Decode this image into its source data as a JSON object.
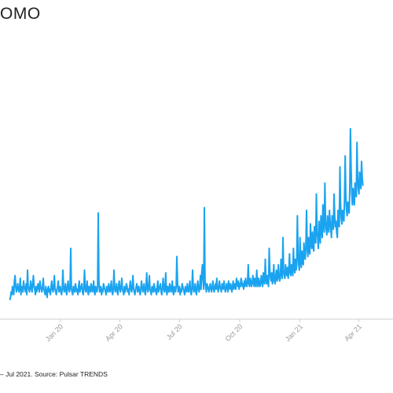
{
  "header": {
    "title": "OMO"
  },
  "footer": {
    "source": "– Jul 2021. Source: Pulsar TRENDS"
  },
  "colors": {
    "line": "#1aa3f0",
    "axis": "#cfcfcf",
    "tick_text": "#9a9a9a"
  },
  "chart_data": {
    "type": "line",
    "title": "OMO",
    "xlabel": "",
    "ylabel": "",
    "x_tick_labels": [
      "Jan 20",
      "Apr 20",
      "Jul 20",
      "Oct 20",
      "Jan 21",
      "Apr 21"
    ],
    "x_tick_days": [
      77,
      168,
      259,
      351,
      443,
      533
    ],
    "xlim_days": [
      -15,
      585
    ],
    "ylim": [
      0,
      100
    ],
    "grid": false,
    "legend": "none",
    "series": [
      {
        "values": [
          7,
          8,
          10,
          9,
          12,
          10,
          9,
          14,
          16,
          12,
          10,
          11,
          13,
          11,
          10,
          12,
          15,
          9,
          12,
          11,
          10,
          14,
          12,
          11,
          10,
          13,
          9,
          18,
          12,
          11,
          10,
          12,
          14,
          11,
          10,
          13,
          16,
          12,
          11,
          9,
          12,
          10,
          11,
          13,
          12,
          10,
          14,
          12,
          11,
          10,
          12,
          15,
          11,
          10,
          9,
          12,
          10,
          8,
          11,
          12,
          10,
          11,
          9,
          12,
          14,
          11,
          10,
          12,
          16,
          11,
          10,
          9,
          11,
          12,
          14,
          10,
          11,
          12,
          10,
          9,
          11,
          18,
          12,
          10,
          11,
          13,
          10,
          9,
          12,
          14,
          11,
          10,
          12,
          26,
          11,
          10,
          9,
          12,
          11,
          10,
          13,
          12,
          10,
          11,
          9,
          12,
          14,
          10,
          11,
          12,
          13,
          10,
          9,
          11,
          18,
          12,
          10,
          11,
          14,
          10,
          9,
          12,
          11,
          10,
          13,
          12,
          10,
          11,
          14,
          10,
          9,
          12,
          11,
          10,
          12,
          39,
          14,
          10,
          11,
          12,
          9,
          11,
          10,
          13,
          12,
          11,
          10,
          9,
          12,
          11,
          10,
          13,
          11,
          10,
          12,
          14,
          10,
          9,
          11,
          18,
          12,
          10,
          11,
          13,
          10,
          9,
          12,
          14,
          11,
          10,
          12,
          15,
          11,
          10,
          9,
          12,
          10,
          11,
          13,
          12,
          10,
          11,
          9,
          12,
          14,
          11,
          10,
          12,
          16,
          11,
          10,
          9,
          11,
          12,
          13,
          10,
          11,
          12,
          10,
          9,
          11,
          14,
          12,
          10,
          11,
          13,
          10,
          9,
          12,
          17,
          11,
          10,
          12,
          16,
          11,
          10,
          9,
          12,
          11,
          10,
          13,
          12,
          10,
          11,
          9,
          12,
          14,
          10,
          11,
          12,
          13,
          10,
          9,
          11,
          15,
          12,
          10,
          11,
          17,
          10,
          9,
          12,
          11,
          10,
          13,
          12,
          10,
          11,
          14,
          10,
          9,
          12,
          11,
          10,
          12,
          23,
          14,
          10,
          11,
          12,
          9,
          11,
          10,
          13,
          12,
          11,
          10,
          9,
          12,
          11,
          10,
          13,
          11,
          10,
          12,
          14,
          10,
          9,
          11,
          18,
          12,
          10,
          11,
          13,
          10,
          9,
          12,
          14,
          11,
          10,
          12,
          16,
          11,
          17,
          20,
          15,
          11,
          41,
          14,
          12,
          10,
          13,
          12,
          11,
          10,
          12,
          13,
          11,
          10,
          12,
          14,
          11,
          10,
          12,
          13,
          11,
          15,
          12,
          10,
          11,
          14,
          12,
          11,
          10,
          13,
          12,
          11,
          14,
          12,
          10,
          11,
          13,
          12,
          10,
          14,
          12,
          11,
          13,
          12,
          10,
          12,
          14,
          11,
          13,
          12,
          11,
          15,
          13,
          12,
          14,
          11,
          13,
          12,
          15,
          14,
          12,
          13,
          11,
          14,
          12,
          15,
          13,
          12,
          14,
          20,
          13,
          12,
          15,
          14,
          12,
          13,
          16,
          14,
          12,
          15,
          13,
          12,
          18,
          14,
          12,
          15,
          13,
          12,
          14,
          16,
          13,
          12,
          17,
          14,
          13,
          22,
          15,
          13,
          16,
          14,
          12,
          26,
          18,
          15,
          14,
          17,
          13,
          15,
          20,
          14,
          13,
          16,
          18,
          14,
          15,
          20,
          16,
          14,
          15,
          22,
          17,
          15,
          30,
          18,
          16,
          15,
          20,
          17,
          16,
          19,
          15,
          18,
          24,
          17,
          16,
          20,
          18,
          16,
          26,
          19,
          17,
          22,
          18,
          20,
          38,
          24,
          20,
          18,
          30,
          22,
          19,
          25,
          21,
          20,
          28,
          24,
          22,
          27,
          40,
          26,
          23,
          30,
          25,
          24,
          35,
          28,
          26,
          32,
          27,
          25,
          34,
          29,
          28,
          46,
          32,
          30,
          26,
          36,
          31,
          28,
          38,
          33,
          30,
          42,
          35,
          32,
          50,
          36,
          33,
          31,
          38,
          34,
          32,
          40,
          36,
          33,
          30,
          38,
          35,
          33,
          46,
          38,
          34,
          36,
          32,
          30,
          40,
          36,
          34,
          56,
          42,
          37,
          35,
          40,
          38,
          36,
          44,
          60,
          45,
          40,
          38,
          43,
          41,
          39,
          48,
          70,
          56,
          46,
          42,
          48,
          44,
          42,
          50,
          47,
          45,
          65,
          52,
          48,
          46,
          54,
          50,
          48,
          58,
          52,
          49
        ]
      }
    ]
  }
}
